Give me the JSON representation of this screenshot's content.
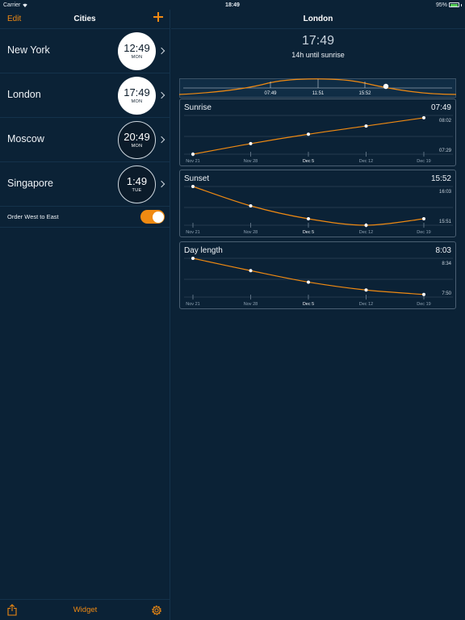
{
  "status": {
    "carrier": "Carrier",
    "time": "18:49",
    "battery": "95%",
    "battery_level": 0.95,
    "battery_color": "#5ad05a"
  },
  "left": {
    "edit_label": "Edit",
    "title": "Cities",
    "cities": [
      {
        "name": "New York",
        "time": "12:49",
        "day": "MON",
        "is_day": true
      },
      {
        "name": "London",
        "time": "17:49",
        "day": "MON",
        "is_day": true
      },
      {
        "name": "Moscow",
        "time": "20:49",
        "day": "MON",
        "is_day": false
      },
      {
        "name": "Singapore",
        "time": "1:49",
        "day": "TUE",
        "is_day": false
      }
    ],
    "order_label": "Order West to East",
    "order_on": true,
    "widget_label": "Widget"
  },
  "right": {
    "title": "London",
    "current_time": "17:49",
    "until_text": "14h until sunrise",
    "strip_labels": [
      "07:49",
      "11:51",
      "15:52"
    ]
  },
  "colors": {
    "accent": "#f08a12",
    "background": "#0b2236"
  },
  "chart_data": [
    {
      "type": "line",
      "title": "Sunrise",
      "current_value": "07:49",
      "categories": [
        "Nov 21",
        "Nov 28",
        "Dec 5",
        "Dec 12",
        "Dec 19"
      ],
      "bold_category": "Dec 5",
      "ytick_labels": [
        "08:02",
        "07:29"
      ],
      "ylim": [
        449,
        482
      ],
      "values": [
        449,
        458,
        466,
        473,
        480
      ]
    },
    {
      "type": "line",
      "title": "Sunset",
      "current_value": "15:52",
      "categories": [
        "Nov 21",
        "Nov 28",
        "Dec 5",
        "Dec 12",
        "Dec 19"
      ],
      "bold_category": "Dec 5",
      "ytick_labels": [
        "16:03",
        "15:51"
      ],
      "ylim": [
        951,
        963
      ],
      "values": [
        963,
        957,
        953,
        951,
        953
      ]
    },
    {
      "type": "line",
      "title": "Day length",
      "current_value": "8:03",
      "categories": [
        "Nov 21",
        "Nov 28",
        "Dec 5",
        "Dec 12",
        "Dec 19"
      ],
      "bold_category": "Dec 5",
      "ytick_labels": [
        "8:34",
        "7:50"
      ],
      "ylim": [
        470,
        514
      ],
      "values": [
        514,
        500,
        487,
        478,
        473
      ]
    }
  ]
}
